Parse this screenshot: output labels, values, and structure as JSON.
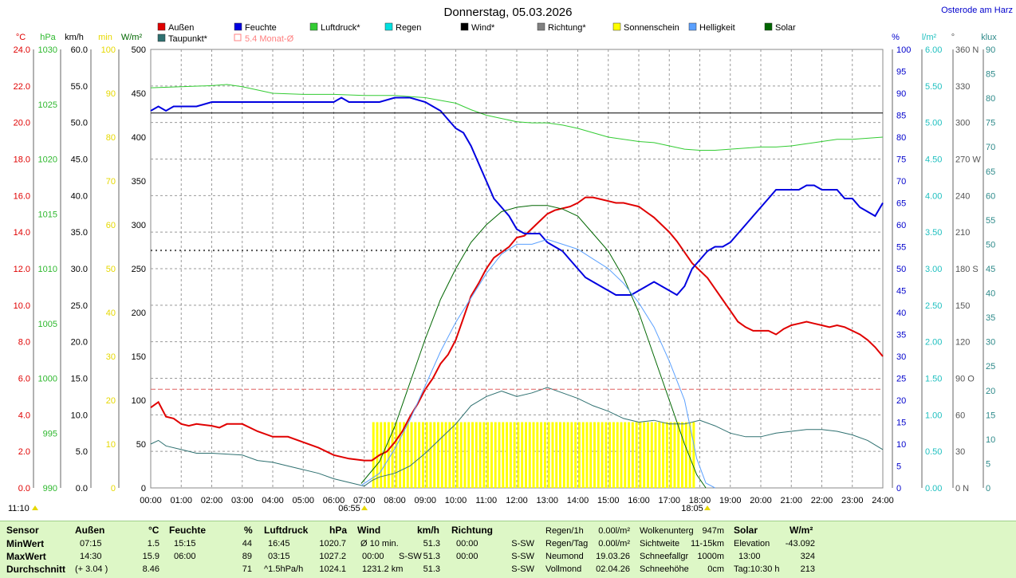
{
  "title": "Donnerstag, 05.03.2026",
  "location": "Osterode am Harz",
  "legend": [
    {
      "label": "Außen",
      "color": "#e00000"
    },
    {
      "label": "Feuchte",
      "color": "#0000e0"
    },
    {
      "label": "Luftdruck*",
      "color": "#33cc33"
    },
    {
      "label": "Regen",
      "color": "#00e0e0"
    },
    {
      "label": "Wind*",
      "color": "#000000"
    },
    {
      "label": "Richtung*",
      "color": "#808080"
    },
    {
      "label": "Sonnenschein",
      "color": "#ffff00"
    },
    {
      "label": "Helligkeit",
      "color": "#5aa0ff"
    },
    {
      "label": "Solar",
      "color": "#006600"
    },
    {
      "label": "Taupunkt*",
      "color": "#2e7070"
    },
    {
      "label": "5.4 Monat-Ø",
      "color": "#ff8080"
    }
  ],
  "axis_units": {
    "temp": "°C",
    "pressure": "hPa",
    "wind": "km/h",
    "sun": "min",
    "solar": "W/m²",
    "humidity": "%",
    "rain": "l/m²",
    "direction": "°",
    "lux": "klux"
  },
  "axis_ticks": {
    "temp": [
      "0.0",
      "2.0",
      "4.0",
      "6.0",
      "8.0",
      "10.0",
      "12.0",
      "14.0",
      "16.0",
      "18.0",
      "20.0",
      "22.0",
      "24.0"
    ],
    "pressure": [
      "990",
      "995",
      "1000",
      "1005",
      "1010",
      "1015",
      "1020",
      "1025",
      "1030"
    ],
    "wind": [
      "0.0",
      "5.0",
      "10.0",
      "15.0",
      "20.0",
      "25.0",
      "30.0",
      "35.0",
      "40.0",
      "45.0",
      "50.0",
      "55.0",
      "60.0"
    ],
    "sun": [
      "0",
      "10",
      "20",
      "30",
      "40",
      "50",
      "60",
      "70",
      "80",
      "90",
      "100"
    ],
    "solar": [
      "0",
      "50",
      "100",
      "150",
      "200",
      "250",
      "300",
      "350",
      "400",
      "450",
      "500"
    ],
    "humidity": [
      "0",
      "5",
      "10",
      "15",
      "20",
      "25",
      "30",
      "35",
      "40",
      "45",
      "50",
      "55",
      "60",
      "65",
      "70",
      "75",
      "80",
      "85",
      "90",
      "95",
      "100"
    ],
    "rain": [
      "0.00",
      "0.50",
      "1.00",
      "1.50",
      "2.00",
      "2.50",
      "3.00",
      "3.50",
      "4.00",
      "4.50",
      "5.00",
      "5.50",
      "6.00"
    ],
    "direction": [
      "0 N",
      "30",
      "60",
      "90 O",
      "120",
      "150",
      "180 S",
      "210",
      "240",
      "270 W",
      "300",
      "330",
      "360 N"
    ],
    "lux": [
      "0",
      "5",
      "10",
      "15",
      "20",
      "25",
      "30",
      "35",
      "40",
      "45",
      "50",
      "55",
      "60",
      "65",
      "70",
      "75",
      "80",
      "85",
      "90"
    ]
  },
  "x_ticks": [
    "00:00",
    "01:00",
    "02:00",
    "03:00",
    "04:00",
    "05:00",
    "06:00",
    "07:00",
    "08:00",
    "09:00",
    "10:00",
    "11:00",
    "12:00",
    "13:00",
    "14:00",
    "15:00",
    "16:00",
    "17:00",
    "18:00",
    "19:00",
    "20:00",
    "21:00",
    "22:00",
    "23:00",
    "24:00"
  ],
  "time_markers": {
    "now": "11:10",
    "sunrise": "06:55",
    "sunset": "18:05"
  },
  "chart_data": {
    "type": "line",
    "title": "Donnerstag, 05.03.2026",
    "x_unit": "hours",
    "xlim": [
      0,
      24
    ],
    "series": [
      {
        "name": "Außen",
        "axis": "temp",
        "ylim": [
          0,
          24
        ],
        "x": [
          0,
          0.25,
          0.5,
          0.75,
          1,
          1.25,
          1.5,
          2,
          2.25,
          2.5,
          3,
          3.5,
          4,
          4.5,
          5,
          5.5,
          6,
          6.5,
          7,
          7.25,
          7.5,
          7.75,
          8,
          8.25,
          8.5,
          8.75,
          9,
          9.25,
          9.5,
          9.75,
          10,
          10.25,
          10.5,
          10.75,
          11,
          11.25,
          11.5,
          11.75,
          12,
          12.25,
          12.5,
          12.75,
          13,
          13.25,
          13.5,
          13.75,
          14,
          14.25,
          14.5,
          14.75,
          15,
          15.25,
          15.5,
          15.75,
          16,
          16.25,
          16.5,
          16.75,
          17,
          17.25,
          17.5,
          17.75,
          18,
          18.25,
          18.5,
          18.75,
          19,
          19.25,
          19.5,
          19.75,
          20,
          20.25,
          20.5,
          20.75,
          21,
          21.25,
          21.5,
          21.75,
          22,
          22.25,
          22.5,
          22.75,
          23,
          23.25,
          23.5,
          23.75,
          24
        ],
        "y": [
          4.4,
          4.7,
          3.9,
          3.8,
          3.5,
          3.4,
          3.5,
          3.4,
          3.3,
          3.5,
          3.5,
          3.1,
          2.8,
          2.8,
          2.5,
          2.2,
          1.8,
          1.6,
          1.5,
          1.5,
          1.8,
          2.0,
          2.5,
          3.1,
          3.9,
          4.6,
          5.4,
          6.0,
          6.8,
          7.3,
          8.1,
          9.3,
          10.5,
          11.2,
          12.0,
          12.6,
          12.9,
          13.2,
          13.7,
          13.8,
          14.2,
          14.6,
          15.0,
          15.2,
          15.3,
          15.4,
          15.6,
          15.9,
          15.9,
          15.8,
          15.7,
          15.6,
          15.6,
          15.5,
          15.4,
          15.1,
          14.8,
          14.4,
          14.0,
          13.5,
          12.9,
          12.3,
          11.9,
          11.5,
          10.9,
          10.3,
          9.7,
          9.1,
          8.8,
          8.6,
          8.6,
          8.6,
          8.4,
          8.7,
          8.9,
          9.0,
          9.1,
          9.0,
          8.9,
          8.8,
          8.9,
          8.8,
          8.6,
          8.4,
          8.1,
          7.7,
          7.2
        ]
      },
      {
        "name": "Feuchte",
        "axis": "humidity",
        "ylim": [
          0,
          100
        ],
        "x": [
          0,
          0.25,
          0.5,
          0.75,
          1,
          1.25,
          1.5,
          2,
          3,
          4,
          5,
          6,
          6.25,
          6.5,
          7,
          7.5,
          8,
          8.5,
          9,
          9.25,
          9.5,
          9.75,
          10,
          10.25,
          10.5,
          10.75,
          11,
          11.25,
          11.5,
          11.75,
          12,
          12.25,
          12.5,
          12.75,
          13,
          13.25,
          13.5,
          13.75,
          14,
          14.25,
          14.5,
          14.75,
          15,
          15.25,
          15.5,
          15.75,
          16,
          16.25,
          16.5,
          16.75,
          17,
          17.25,
          17.5,
          17.75,
          18,
          18.25,
          18.5,
          18.75,
          19,
          19.25,
          19.5,
          19.75,
          20,
          20.25,
          20.5,
          20.75,
          21,
          21.25,
          21.5,
          21.75,
          22,
          22.25,
          22.5,
          22.75,
          23,
          23.25,
          23.5,
          23.75,
          24
        ],
        "y": [
          86,
          87,
          86,
          87,
          87,
          87,
          87,
          88,
          88,
          88,
          88,
          88,
          89,
          88,
          88,
          88,
          89,
          89,
          88,
          87,
          86,
          84,
          82,
          81,
          78,
          74,
          70,
          66,
          64,
          62,
          59,
          58,
          58,
          58,
          56,
          55,
          54,
          52,
          50,
          48,
          47,
          46,
          45,
          44,
          44,
          44,
          45,
          46,
          47,
          46,
          45,
          44,
          46,
          50,
          52,
          54,
          55,
          55,
          56,
          58,
          60,
          62,
          64,
          66,
          68,
          68,
          68,
          68,
          69,
          69,
          68,
          68,
          68,
          66,
          66,
          64,
          63,
          62,
          65
        ]
      },
      {
        "name": "Luftdruck*",
        "axis": "pressure",
        "ylim": [
          990,
          1030
        ],
        "x": [
          0,
          1,
          2,
          2.5,
          3,
          3.5,
          4,
          5,
          6,
          7,
          8,
          9,
          10,
          10.5,
          11,
          11.5,
          12,
          12.5,
          13,
          13.5,
          14,
          14.5,
          15,
          15.5,
          16,
          16.5,
          17,
          17.5,
          18,
          18.5,
          19,
          19.5,
          20,
          20.5,
          21,
          21.5,
          22,
          22.5,
          23,
          23.5,
          24
        ],
        "y": [
          1026.5,
          1026.6,
          1026.7,
          1026.8,
          1026.6,
          1026.3,
          1026.0,
          1025.9,
          1025.9,
          1025.8,
          1025.8,
          1025.6,
          1025.1,
          1024.5,
          1024.0,
          1023.7,
          1023.4,
          1023.3,
          1023.3,
          1023.1,
          1022.8,
          1022.4,
          1022.0,
          1021.8,
          1021.6,
          1021.5,
          1021.2,
          1020.9,
          1020.8,
          1020.8,
          1020.9,
          1021.0,
          1021.1,
          1021.1,
          1021.2,
          1021.4,
          1021.6,
          1021.8,
          1021.8,
          1021.9,
          1022.0
        ]
      },
      {
        "name": "Wind*",
        "axis": "wind",
        "ylim": [
          0,
          60
        ],
        "x": [
          0,
          24
        ],
        "y": [
          51.3,
          51.3
        ]
      },
      {
        "name": "Richtung*",
        "axis": "direction",
        "ylim": [
          0,
          360
        ],
        "x": [
          0,
          24
        ],
        "y": [
          195,
          195
        ]
      },
      {
        "name": "Taupunkt*",
        "axis": "temp",
        "ylim": [
          0,
          24
        ],
        "x": [
          0,
          0.25,
          0.5,
          1,
          1.5,
          2,
          3,
          3.5,
          4,
          4.5,
          5,
          5.5,
          6,
          6.5,
          7,
          7.25,
          7.5,
          8,
          8.5,
          9,
          9.5,
          10,
          10.5,
          11,
          11.5,
          12,
          12.5,
          13,
          13.5,
          14,
          14.5,
          15,
          15.5,
          16,
          16.5,
          17,
          17.5,
          18,
          18.5,
          19,
          19.5,
          20,
          20.5,
          21,
          21.5,
          22,
          22.5,
          23,
          23.5,
          24
        ],
        "y": [
          2.4,
          2.6,
          2.3,
          2.1,
          1.9,
          1.9,
          1.8,
          1.5,
          1.4,
          1.2,
          1.0,
          0.8,
          0.5,
          0.3,
          0.1,
          0.4,
          0.6,
          0.8,
          1.2,
          1.9,
          2.7,
          3.5,
          4.5,
          5.0,
          5.3,
          5.0,
          5.2,
          5.5,
          5.2,
          4.9,
          4.5,
          4.2,
          3.8,
          3.6,
          3.7,
          3.5,
          3.5,
          3.7,
          3.4,
          3.0,
          2.8,
          2.8,
          3.0,
          3.1,
          3.2,
          3.2,
          3.1,
          2.9,
          2.6,
          2.1
        ]
      },
      {
        "name": "Solar",
        "axis": "solar",
        "ylim": [
          0,
          500
        ],
        "x": [
          6.9,
          7.5,
          8,
          8.5,
          9,
          9.5,
          10,
          10.5,
          11,
          11.5,
          12,
          12.5,
          13,
          13.5,
          14,
          14.5,
          15,
          15.5,
          16,
          16.5,
          17,
          17.5,
          17.9,
          18.2
        ],
        "y": [
          5,
          30,
          70,
          120,
          170,
          215,
          250,
          280,
          300,
          315,
          320,
          322,
          322,
          318,
          310,
          290,
          270,
          240,
          200,
          150,
          100,
          50,
          15,
          0
        ]
      },
      {
        "name": "Helligkeit",
        "axis": "lux",
        "ylim": [
          0,
          90
        ],
        "x": [
          6.9,
          7.5,
          8,
          8.5,
          9,
          9.5,
          10,
          10.5,
          11,
          11.5,
          12,
          12.5,
          13,
          13.5,
          14,
          14.5,
          15,
          15.5,
          16,
          16.5,
          17,
          17.5,
          17.9,
          18.2,
          18.5
        ],
        "y": [
          0.5,
          3,
          8,
          14,
          21,
          28,
          34,
          39,
          44,
          48,
          50,
          50,
          51,
          50,
          49,
          47,
          45,
          42,
          38,
          33,
          26,
          18,
          6,
          1,
          0
        ]
      },
      {
        "name": "5.4 Monat-Ø",
        "axis": "temp",
        "ylim": [
          0,
          24
        ],
        "x": [
          0,
          24
        ],
        "y": [
          5.4,
          5.4
        ]
      },
      {
        "name": "Sonnenschein",
        "axis": "sun",
        "ylim": [
          0,
          100
        ],
        "type": "bar",
        "x_range": [
          7.3,
          17.9
        ],
        "value": 15
      }
    ]
  },
  "stats": {
    "header": {
      "sensor": "Sensor",
      "aussen": "Außen",
      "aussen_unit": "°C",
      "feuchte": "Feuchte",
      "feuchte_unit": "%",
      "luftdruck": "Luftdruck",
      "luftdruck_unit": "hPa",
      "wind": "Wind",
      "wind_unit": "km/h",
      "richtung": "Richtung"
    },
    "rows": [
      {
        "label": "MinWert",
        "aussen_time": "07:15",
        "aussen_val": "1.5",
        "feuchte_time": "15:15",
        "feuchte_val": "44",
        "druck_time": "16:45",
        "druck_val": "1020.7",
        "wind_time": "Ø 10 min.",
        "wind_dir": "",
        "wind_val": "51.3",
        "richt_time": "00:00",
        "richt_val": "S-SW"
      },
      {
        "label": "MaxWert",
        "aussen_time": "14:30",
        "aussen_val": "15.9",
        "feuchte_time": "06:00",
        "feuchte_val": "89",
        "druck_time": "03:15",
        "druck_val": "1027.2",
        "wind_time": "00:00",
        "wind_dir": "S-SW",
        "wind_val": "51.3",
        "richt_time": "00:00",
        "richt_val": "S-SW"
      },
      {
        "label": "Durchschnitt",
        "aussen_time": "(+ 3.04 )",
        "aussen_val": "8.46",
        "feuchte_time": "",
        "feuchte_val": "71",
        "druck_time": "^1.5hPa/h",
        "druck_val": "1024.1",
        "wind_time": "1231.2 km",
        "wind_dir": "",
        "wind_val": "51.3",
        "richt_time": "",
        "richt_val": "S-SW"
      }
    ],
    "rain": [
      {
        "label": "Regen/1h",
        "value": "0.00l/m²"
      },
      {
        "label": "Regen/Tag",
        "value": "0.00l/m²"
      },
      {
        "label": "Neumond",
        "value": "19.03.26"
      },
      {
        "label": "Vollmond",
        "value": "02.04.26"
      }
    ],
    "weather": [
      {
        "label": "Wolkenunterg",
        "value": "947m"
      },
      {
        "label": "Sichtweite",
        "value": "11-15km"
      },
      {
        "label": "Schneefallgr",
        "value": "1000m"
      },
      {
        "label": "Schneehöhe",
        "value": "0cm"
      }
    ],
    "solar": {
      "title": "Solar",
      "unit": "W/m²",
      "rows": [
        {
          "label": "Elevation",
          "value": "-43.092"
        },
        {
          "label": "13:00",
          "value": "324"
        },
        {
          "label": "Tag:10:30 h",
          "value": "213"
        }
      ]
    }
  }
}
